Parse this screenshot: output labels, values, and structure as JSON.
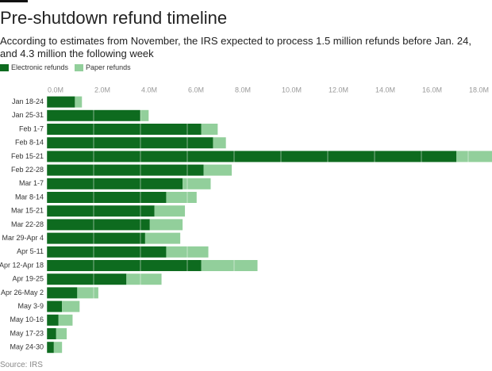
{
  "chart_data": {
    "type": "stacked-bar-horizontal",
    "title": "Pre-shutdown refund timeline",
    "subtitle": "According to estimates from November, the IRS expected to process 1.5 million refunds before Jan. 24, and 4.3 million the following week",
    "source": "Source: IRS",
    "categories": [
      "Jan 18-24",
      "Jan 25-31",
      "Feb 1-7",
      "Feb 8-14",
      "Feb 15-21",
      "Feb 22-28",
      "Mar 1-7",
      "Mar 8-14",
      "Mar 15-21",
      "Mar 22-28",
      "Mar 29-Apr 4",
      "Apr 5-11",
      "Apr 12-Apr 18",
      "Apr 19-25",
      "Apr 26-May 2",
      "May 3-9",
      "May 10-16",
      "May 17-23",
      "May 24-30"
    ],
    "series": [
      {
        "name": "Electronic refunds",
        "color": "#0e6b1f",
        "values": [
          1.2,
          4.0,
          6.6,
          7.1,
          17.5,
          6.7,
          5.8,
          5.1,
          4.6,
          4.4,
          4.2,
          5.1,
          6.6,
          3.4,
          1.3,
          0.65,
          0.5,
          0.4,
          0.3
        ]
      },
      {
        "name": "Paper refunds",
        "color": "#92cf9b",
        "values": [
          0.3,
          0.35,
          0.7,
          0.55,
          1.6,
          1.2,
          1.2,
          1.3,
          1.3,
          1.4,
          1.5,
          1.8,
          2.4,
          1.5,
          0.9,
          0.75,
          0.6,
          0.45,
          0.35
        ]
      }
    ],
    "xlim": [
      0,
      19
    ],
    "xticks": [
      {
        "value": 0,
        "label": "0.0M"
      },
      {
        "value": 2,
        "label": "2.0M"
      },
      {
        "value": 4,
        "label": "4.0M"
      },
      {
        "value": 6,
        "label": "6.0M"
      },
      {
        "value": 8,
        "label": "8.0M"
      },
      {
        "value": 10,
        "label": "10.0M"
      },
      {
        "value": 12,
        "label": "12.0M"
      },
      {
        "value": 14,
        "label": "14.0M"
      },
      {
        "value": 16,
        "label": "16.0M"
      },
      {
        "value": 18,
        "label": "18.0M"
      }
    ],
    "grid": true
  }
}
